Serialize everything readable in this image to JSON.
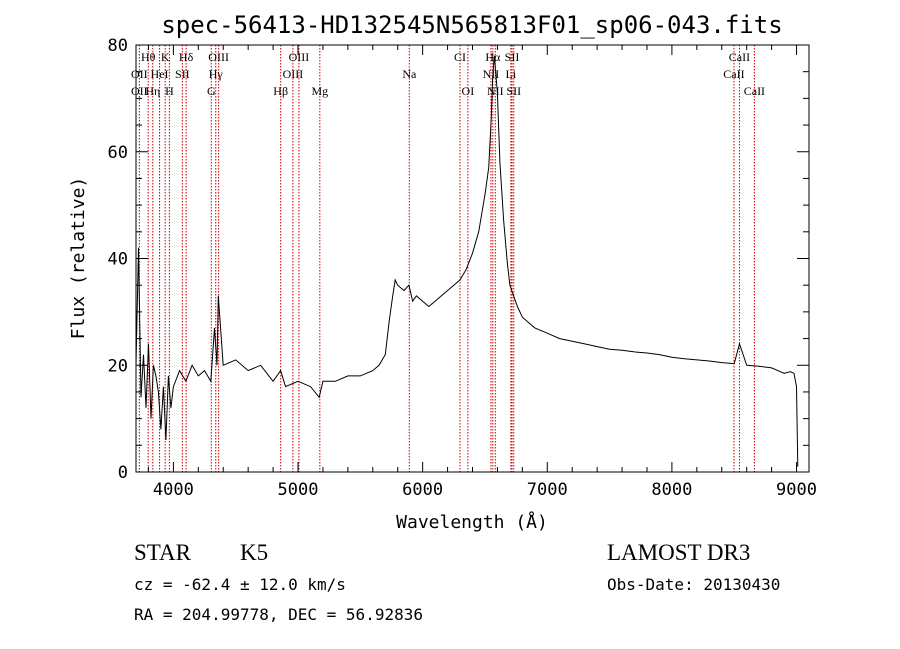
{
  "chart_data": {
    "type": "line",
    "title": "spec-56413-HD132545N565813F01_sp06-043.fits",
    "xlabel": "Wavelength (Å)",
    "ylabel": "Flux (relative)",
    "xlim": [
      3700,
      9100
    ],
    "ylim": [
      0,
      80
    ],
    "x_ticks": [
      4000,
      5000,
      6000,
      7000,
      8000,
      9000
    ],
    "x_tick_labels": [
      "4000",
      "5000",
      "6000",
      "7000",
      "8000",
      "9000"
    ],
    "y_ticks": [
      0,
      20,
      40,
      60,
      80
    ],
    "y_tick_labels": [
      "0",
      "20",
      "40",
      "60",
      "80"
    ],
    "grid": false,
    "series": [
      {
        "color": "#000000",
        "x": [
          3700,
          3720,
          3740,
          3760,
          3780,
          3800,
          3820,
          3840,
          3860,
          3880,
          3900,
          3920,
          3940,
          3960,
          3980,
          4000,
          4050,
          4100,
          4150,
          4200,
          4250,
          4300,
          4330,
          4350,
          4360,
          4400,
          4500,
          4600,
          4700,
          4800,
          4860,
          4900,
          5000,
          5100,
          5170,
          5200,
          5300,
          5400,
          5500,
          5600,
          5650,
          5700,
          5730,
          5760,
          5780,
          5800,
          5850,
          5890,
          5920,
          5950,
          6000,
          6050,
          6100,
          6150,
          6200,
          6250,
          6300,
          6350,
          6400,
          6450,
          6500,
          6530,
          6550,
          6562,
          6575,
          6600,
          6620,
          6650,
          6680,
          6700,
          6730,
          6760,
          6800,
          6850,
          6900,
          7000,
          7100,
          7200,
          7300,
          7400,
          7500,
          7600,
          7700,
          7800,
          7900,
          8000,
          8100,
          8200,
          8300,
          8400,
          8500,
          8542,
          8600,
          8700,
          8800,
          8850,
          8900,
          8950,
          8980,
          9000,
          9010
        ],
        "y": [
          20,
          42,
          14,
          22,
          12,
          24,
          10,
          20,
          18,
          15,
          8,
          16,
          6,
          18,
          12,
          16,
          19,
          17,
          20,
          18,
          19,
          17,
          27,
          20,
          33,
          20,
          21,
          19,
          20,
          17,
          19,
          16,
          17,
          16,
          14,
          17,
          17,
          18,
          18,
          19,
          20,
          22,
          28,
          33,
          36,
          35,
          34,
          35,
          32,
          33,
          32,
          31,
          32,
          33,
          34,
          35,
          36,
          38,
          41,
          45,
          52,
          57,
          66,
          74,
          78,
          71,
          58,
          47,
          39,
          35,
          33,
          31,
          29,
          28,
          27,
          26,
          25,
          24.5,
          24,
          23.5,
          23,
          22.8,
          22.5,
          22.3,
          22,
          21.5,
          21.2,
          21,
          20.8,
          20.5,
          20.3,
          24,
          20,
          19.8,
          19.5,
          19,
          18.5,
          18.8,
          18.5,
          16,
          1
        ]
      }
    ],
    "spectral_lines": [
      {
        "label": "Hθ",
        "x": 3798,
        "row": 1
      },
      {
        "label": "K",
        "x": 3934,
        "row": 1
      },
      {
        "label": "Hδ",
        "x": 4102,
        "row": 1
      },
      {
        "label": "OIII",
        "x": 4363,
        "row": 1
      },
      {
        "label": "OIII",
        "x": 5007,
        "row": 1
      },
      {
        "label": "CI",
        "x": 6300,
        "row": 1
      },
      {
        "label": "Hα",
        "x": 6563,
        "row": 1
      },
      {
        "label": "SII",
        "x": 6717,
        "row": 1
      },
      {
        "label": "CaII",
        "x": 8542,
        "row": 1
      },
      {
        "label": "OII",
        "x": 3727,
        "row": 2
      },
      {
        "label": "HeI",
        "x": 3889,
        "row": 2
      },
      {
        "label": "SII",
        "x": 4072,
        "row": 2
      },
      {
        "label": "Hγ",
        "x": 4340,
        "row": 2
      },
      {
        "label": "OIII",
        "x": 4959,
        "row": 2
      },
      {
        "label": "Na",
        "x": 5893,
        "row": 2
      },
      {
        "label": "NII",
        "x": 6548,
        "row": 2
      },
      {
        "label": "Li",
        "x": 6708,
        "row": 2
      },
      {
        "label": "CaII",
        "x": 8498,
        "row": 2
      },
      {
        "label": "OII",
        "x": 3727,
        "row": 3
      },
      {
        "label": "Hη",
        "x": 3835,
        "row": 3
      },
      {
        "label": "H",
        "x": 3968,
        "row": 3
      },
      {
        "label": "G",
        "x": 4304,
        "row": 3
      },
      {
        "label": "Hβ",
        "x": 4861,
        "row": 3
      },
      {
        "label": "Mg",
        "x": 5175,
        "row": 3
      },
      {
        "label": "OI",
        "x": 6363,
        "row": 3
      },
      {
        "label": "NII",
        "x": 6583,
        "row": 3
      },
      {
        "label": "SII",
        "x": 6731,
        "row": 3
      },
      {
        "label": "CaII",
        "x": 8662,
        "row": 3
      }
    ],
    "line_marker_color": "#cc0000"
  },
  "info": {
    "class_label": "STAR",
    "subclass_label": "K5",
    "survey_label": "LAMOST DR3",
    "cz_text": "cz = -62.4 ± 12.0 km/s",
    "obs_date_text": "Obs-Date: 20130430",
    "coords_text": "RA = 204.99778, DEC =  56.92836"
  }
}
